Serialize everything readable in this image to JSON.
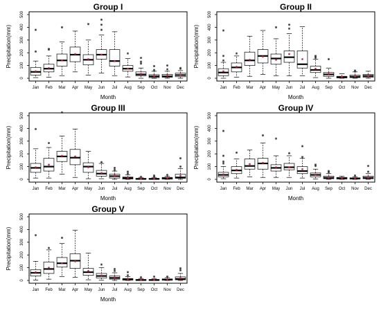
{
  "chart_data": [
    {
      "type": "boxplot",
      "title": "Group I",
      "xlabel": "Month",
      "ylabel": "Precipitation(mm)",
      "ylim": [
        0,
        500
      ],
      "yticks": [
        "0",
        "100",
        "200",
        "300",
        "400",
        "500"
      ],
      "categories": [
        "Jan",
        "Feb",
        "Mar",
        "Apr",
        "May",
        "Jun",
        "Jul",
        "Aug",
        "Sep",
        "Oct",
        "Nov",
        "Dec"
      ],
      "boxes": [
        {
          "low": 5,
          "q1": 25,
          "median": 50,
          "q3": 85,
          "high": 135,
          "mean": 55,
          "outliers": [
            210,
            380
          ]
        },
        {
          "low": 8,
          "q1": 50,
          "median": 75,
          "q3": 110,
          "high": 175,
          "mean": 80,
          "outliers": [
            225,
            230
          ]
        },
        {
          "low": 20,
          "q1": 95,
          "median": 140,
          "q3": 190,
          "high": 285,
          "mean": 140,
          "outliers": [
            400
          ]
        },
        {
          "low": 50,
          "q1": 130,
          "median": 185,
          "q3": 245,
          "high": 370,
          "mean": 190,
          "outliers": []
        },
        {
          "low": 25,
          "q1": 105,
          "median": 145,
          "q3": 185,
          "high": 300,
          "mean": 150,
          "outliers": [
            425
          ]
        },
        {
          "low": 40,
          "q1": 150,
          "median": 185,
          "q3": 225,
          "high": 340,
          "mean": 185,
          "outliers": [
            380,
            420,
            460
          ]
        },
        {
          "low": 20,
          "q1": 95,
          "median": 135,
          "q3": 225,
          "high": 365,
          "mean": 135,
          "outliers": []
        },
        {
          "low": 10,
          "q1": 55,
          "median": 75,
          "q3": 100,
          "high": 155,
          "mean": 75,
          "outliers": [
            195
          ]
        },
        {
          "low": 0,
          "q1": 20,
          "median": 30,
          "q3": 50,
          "high": 80,
          "mean": 35,
          "outliers": [
            115,
            130,
            160
          ]
        },
        {
          "low": 0,
          "q1": 5,
          "median": 15,
          "q3": 28,
          "high": 55,
          "mean": 18,
          "outliers": [
            65,
            95
          ]
        },
        {
          "low": 0,
          "q1": 8,
          "median": 15,
          "q3": 30,
          "high": 55,
          "mean": 20,
          "outliers": [
            70,
            100
          ]
        },
        {
          "low": 0,
          "q1": 12,
          "median": 25,
          "q3": 40,
          "high": 60,
          "mean": 28,
          "outliers": [
            75,
            80
          ]
        }
      ]
    },
    {
      "type": "boxplot",
      "title": "Group II",
      "xlabel": "Month",
      "ylabel": "Precipitation(mm)",
      "ylim": [
        0,
        500
      ],
      "yticks": [
        "0",
        "100",
        "200",
        "300",
        "400",
        "500"
      ],
      "categories": [
        "Jan",
        "Feb",
        "Mar",
        "Apr",
        "May",
        "Jun",
        "Jul",
        "Aug",
        "Sep",
        "Oct",
        "Nov",
        "Dec"
      ],
      "boxes": [
        {
          "low": 0,
          "q1": 20,
          "median": 45,
          "q3": 75,
          "high": 125,
          "mean": 55,
          "outliers": [
            140,
            175,
            375
          ]
        },
        {
          "low": 8,
          "q1": 50,
          "median": 85,
          "q3": 120,
          "high": 175,
          "mean": 90,
          "outliers": [
            195
          ]
        },
        {
          "low": 15,
          "q1": 100,
          "median": 140,
          "q3": 205,
          "high": 330,
          "mean": 145,
          "outliers": []
        },
        {
          "low": 30,
          "q1": 120,
          "median": 175,
          "q3": 225,
          "high": 375,
          "mean": 170,
          "outliers": []
        },
        {
          "low": 20,
          "q1": 110,
          "median": 155,
          "q3": 190,
          "high": 310,
          "mean": 145,
          "outliers": [
            400
          ]
        },
        {
          "low": 20,
          "q1": 125,
          "median": 165,
          "q3": 215,
          "high": 350,
          "mean": 190,
          "outliers": [
            390,
            420
          ]
        },
        {
          "low": 20,
          "q1": 80,
          "median": 110,
          "q3": 215,
          "high": 405,
          "mean": 150,
          "outliers": []
        },
        {
          "low": 5,
          "q1": 45,
          "median": 65,
          "q3": 95,
          "high": 150,
          "mean": 75,
          "outliers": [
            160,
            170,
            175
          ]
        },
        {
          "low": 0,
          "q1": 15,
          "median": 30,
          "q3": 45,
          "high": 80,
          "mean": 35,
          "outliers": [
            150
          ]
        },
        {
          "low": 0,
          "q1": 3,
          "median": 8,
          "q3": 15,
          "high": 35,
          "mean": 10,
          "outliers": []
        },
        {
          "low": 0,
          "q1": 5,
          "median": 12,
          "q3": 25,
          "high": 50,
          "mean": 15,
          "outliers": [
            55,
            60
          ]
        },
        {
          "low": 0,
          "q1": 8,
          "median": 18,
          "q3": 30,
          "high": 55,
          "mean": 20,
          "outliers": []
        }
      ]
    },
    {
      "type": "boxplot",
      "title": "Group III",
      "xlabel": "Month",
      "ylabel": "Precipitation(mm)",
      "ylim": [
        0,
        500
      ],
      "yticks": [
        "0",
        "100",
        "200",
        "300",
        "400",
        "500"
      ],
      "categories": [
        "Jan",
        "Feb",
        "Mar",
        "Apr",
        "May",
        "Jun",
        "Jul",
        "Aug",
        "Sep",
        "Oct",
        "Nov",
        "Dec"
      ],
      "boxes": [
        {
          "low": 10,
          "q1": 55,
          "median": 90,
          "q3": 125,
          "high": 240,
          "mean": 95,
          "outliers": [
            395
          ]
        },
        {
          "low": 10,
          "q1": 65,
          "median": 100,
          "q3": 165,
          "high": 250,
          "mean": 115,
          "outliers": [
            285
          ]
        },
        {
          "low": 40,
          "q1": 140,
          "median": 180,
          "q3": 220,
          "high": 340,
          "mean": 185,
          "outliers": [
            525
          ]
        },
        {
          "low": 15,
          "q1": 115,
          "median": 170,
          "q3": 235,
          "high": 395,
          "mean": 180,
          "outliers": []
        },
        {
          "low": 5,
          "q1": 55,
          "median": 100,
          "q3": 130,
          "high": 220,
          "mean": 95,
          "outliers": []
        },
        {
          "low": 5,
          "q1": 25,
          "median": 45,
          "q3": 70,
          "high": 125,
          "mean": 50,
          "outliers": [
            135
          ]
        },
        {
          "low": 0,
          "q1": 10,
          "median": 25,
          "q3": 40,
          "high": 65,
          "mean": 30,
          "outliers": [
            75,
            90
          ]
        },
        {
          "low": 0,
          "q1": 3,
          "median": 10,
          "q3": 18,
          "high": 35,
          "mean": 12,
          "outliers": [
            45,
            60
          ]
        },
        {
          "low": 0,
          "q1": 0,
          "median": 3,
          "q3": 8,
          "high": 15,
          "mean": 5,
          "outliers": [
            20
          ]
        },
        {
          "low": 0,
          "q1": 0,
          "median": 3,
          "q3": 8,
          "high": 15,
          "mean": 5,
          "outliers": [
            20,
            30
          ]
        },
        {
          "low": 0,
          "q1": 2,
          "median": 8,
          "q3": 15,
          "high": 25,
          "mean": 10,
          "outliers": [
            35
          ]
        },
        {
          "low": 0,
          "q1": 8,
          "median": 15,
          "q3": 40,
          "high": 85,
          "mean": 28,
          "outliers": [
            100,
            165
          ]
        }
      ]
    },
    {
      "type": "boxplot",
      "title": "Group IV",
      "xlabel": "Month",
      "ylabel": "Precipitation(mm)",
      "ylim": [
        0,
        500
      ],
      "yticks": [
        "0",
        "100",
        "200",
        "300",
        "400",
        "500"
      ],
      "categories": [
        "Jan",
        "Feb",
        "Mar",
        "Apr",
        "May",
        "Jun",
        "Jul",
        "Aug",
        "Sep",
        "Oct",
        "Nov",
        "Dec"
      ],
      "boxes": [
        {
          "low": 5,
          "q1": 20,
          "median": 35,
          "q3": 55,
          "high": 100,
          "mean": 40,
          "outliers": [
            125,
            140,
            185,
            380
          ]
        },
        {
          "low": 10,
          "q1": 45,
          "median": 70,
          "q3": 100,
          "high": 160,
          "mean": 75,
          "outliers": [
            210
          ]
        },
        {
          "low": 20,
          "q1": 80,
          "median": 105,
          "q3": 160,
          "high": 230,
          "mean": 120,
          "outliers": []
        },
        {
          "low": 15,
          "q1": 80,
          "median": 125,
          "q3": 165,
          "high": 285,
          "mean": 130,
          "outliers": [
            345
          ]
        },
        {
          "low": 15,
          "q1": 65,
          "median": 90,
          "q3": 115,
          "high": 185,
          "mean": 95,
          "outliers": [
            320
          ]
        },
        {
          "low": 15,
          "q1": 75,
          "median": 95,
          "q3": 125,
          "high": 185,
          "mean": 95,
          "outliers": [
            205
          ]
        },
        {
          "low": 10,
          "q1": 45,
          "median": 65,
          "q3": 100,
          "high": 165,
          "mean": 80,
          "outliers": [
            175,
            260
          ]
        },
        {
          "low": 3,
          "q1": 20,
          "median": 35,
          "q3": 50,
          "high": 80,
          "mean": 38,
          "outliers": [
            105,
            115
          ]
        },
        {
          "low": 0,
          "q1": 5,
          "median": 12,
          "q3": 25,
          "high": 45,
          "mean": 15,
          "outliers": [
            55,
            65
          ]
        },
        {
          "low": 0,
          "q1": 3,
          "median": 8,
          "q3": 15,
          "high": 25,
          "mean": 8,
          "outliers": []
        },
        {
          "low": 0,
          "q1": 3,
          "median": 6,
          "q3": 12,
          "high": 20,
          "mean": 8,
          "outliers": [
            30
          ]
        },
        {
          "low": 0,
          "q1": 5,
          "median": 12,
          "q3": 25,
          "high": 45,
          "mean": 15,
          "outliers": [
            60,
            105
          ]
        }
      ]
    },
    {
      "type": "boxplot",
      "title": "Group V",
      "xlabel": "Month",
      "ylabel": "Precipitation(mm)",
      "ylim": [
        0,
        500
      ],
      "yticks": [
        "0",
        "100",
        "200",
        "300",
        "400",
        "500"
      ],
      "categories": [
        "Jan",
        "Feb",
        "Mar",
        "Apr",
        "May",
        "Jun",
        "Jul",
        "Aug",
        "Sep",
        "Oct",
        "Nov",
        "Dec"
      ],
      "boxes": [
        {
          "low": 3,
          "q1": 35,
          "median": 60,
          "q3": 85,
          "high": 150,
          "mean": 65,
          "outliers": [
            355
          ]
        },
        {
          "low": 10,
          "q1": 55,
          "median": 90,
          "q3": 145,
          "high": 240,
          "mean": 100,
          "outliers": [
            255
          ]
        },
        {
          "low": 30,
          "q1": 105,
          "median": 135,
          "q3": 180,
          "high": 290,
          "mean": 135,
          "outliers": [
            335
          ]
        },
        {
          "low": 25,
          "q1": 95,
          "median": 155,
          "q3": 210,
          "high": 395,
          "mean": 150,
          "outliers": []
        },
        {
          "low": 5,
          "q1": 40,
          "median": 65,
          "q3": 95,
          "high": 215,
          "mean": 75,
          "outliers": []
        },
        {
          "low": 3,
          "q1": 20,
          "median": 35,
          "q3": 55,
          "high": 100,
          "mean": 40,
          "outliers": [
            125
          ]
        },
        {
          "low": 0,
          "q1": 10,
          "median": 20,
          "q3": 35,
          "high": 60,
          "mean": 25,
          "outliers": [
            75,
            90
          ]
        },
        {
          "low": 0,
          "q1": 3,
          "median": 8,
          "q3": 15,
          "high": 30,
          "mean": 10,
          "outliers": [
            40,
            65
          ]
        },
        {
          "low": 0,
          "q1": 0,
          "median": 3,
          "q3": 8,
          "high": 15,
          "mean": 5,
          "outliers": [
            25
          ]
        },
        {
          "low": 0,
          "q1": 0,
          "median": 3,
          "q3": 8,
          "high": 15,
          "mean": 5,
          "outliers": [
            30
          ]
        },
        {
          "low": 0,
          "q1": 2,
          "median": 6,
          "q3": 12,
          "high": 22,
          "mean": 8,
          "outliers": [
            30
          ]
        },
        {
          "low": 0,
          "q1": 5,
          "median": 12,
          "q3": 28,
          "high": 55,
          "mean": 18,
          "outliers": [
            80,
            95
          ]
        }
      ]
    }
  ],
  "colors": {
    "mean_marker": "#e8102a",
    "median_line": "#000000",
    "box_stroke": "#222222",
    "outlier": "#333333"
  }
}
